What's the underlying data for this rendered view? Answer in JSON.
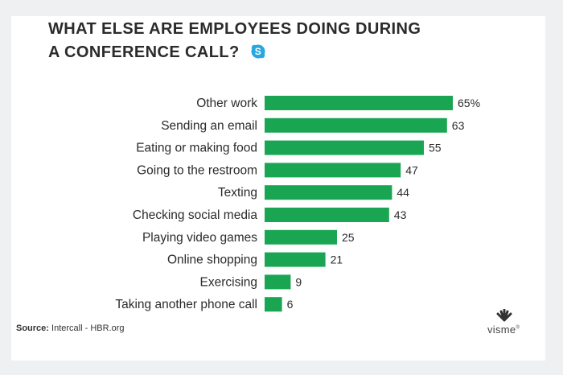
{
  "title": {
    "line1": "WHAT ELSE ARE EMPLOYEES DOING DURING",
    "line2": "A CONFERENCE CALL?",
    "icon": "skype-icon"
  },
  "chart_data": {
    "type": "bar",
    "orientation": "horizontal",
    "title": "WHAT ELSE ARE EMPLOYEES DOING DURING A CONFERENCE CALL?",
    "categories": [
      "Other work",
      "Sending an email",
      "Eating or making food",
      "Going to the restroom",
      "Texting",
      "Checking social media",
      "Playing video games",
      "Online shopping",
      "Exercising",
      "Taking another phone call"
    ],
    "values": [
      65,
      63,
      55,
      47,
      44,
      43,
      25,
      21,
      9,
      6
    ],
    "value_labels": [
      "65%",
      "63",
      "55",
      "47",
      "44",
      "43",
      "25",
      "21",
      "9",
      "6"
    ],
    "unit": "%",
    "xlim": [
      0,
      100
    ],
    "grid": false,
    "legend": "none",
    "bar_color": "#1aa553"
  },
  "source": {
    "label": "Source:",
    "text": "Intercall - HBR.org"
  },
  "brand": {
    "name": "visme",
    "mark": "®",
    "icon": "visme-logo-icon"
  },
  "colors": {
    "background": "#eef0f1",
    "card": "#ffffff",
    "bar": "#1aa553",
    "text": "#2b2b2b",
    "skype": "#2aa6e0"
  }
}
